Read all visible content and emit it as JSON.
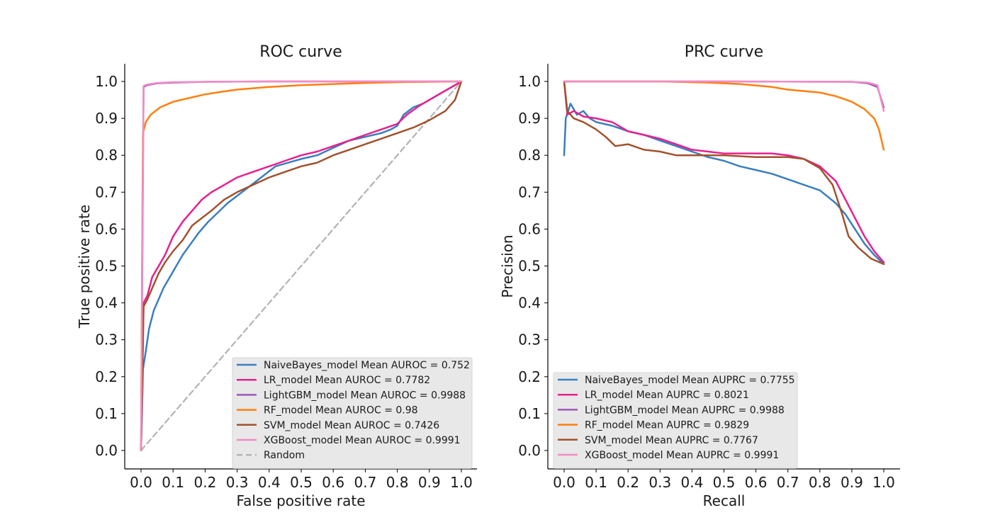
{
  "chart_data": [
    {
      "type": "line",
      "title": "ROC curve",
      "xlabel": "False positive rate",
      "ylabel": "True positive rate",
      "xlim": [
        0,
        1
      ],
      "ylim": [
        0,
        1
      ],
      "xticks": [
        "0.0",
        "0.1",
        "0.2",
        "0.3",
        "0.4",
        "0.5",
        "0.6",
        "0.7",
        "0.8",
        "0.9",
        "1.0"
      ],
      "yticks": [
        "0.0",
        "0.1",
        "0.2",
        "0.3",
        "0.4",
        "0.5",
        "0.6",
        "0.7",
        "0.8",
        "0.9",
        "1.0"
      ],
      "grid": false,
      "legend_position": "lower-right",
      "series": [
        {
          "name": "NaiveBayes_model Mean AUROC = 0.752",
          "color": "#3a7ebd",
          "points": [
            [
              0,
              0
            ],
            [
              0.003,
              0.1
            ],
            [
              0.006,
              0.22
            ],
            [
              0.015,
              0.27
            ],
            [
              0.025,
              0.33
            ],
            [
              0.04,
              0.38
            ],
            [
              0.055,
              0.41
            ],
            [
              0.07,
              0.44
            ],
            [
              0.09,
              0.47
            ],
            [
              0.11,
              0.5
            ],
            [
              0.13,
              0.53
            ],
            [
              0.155,
              0.56
            ],
            [
              0.18,
              0.59
            ],
            [
              0.21,
              0.62
            ],
            [
              0.24,
              0.645
            ],
            [
              0.27,
              0.67
            ],
            [
              0.3,
              0.69
            ],
            [
              0.33,
              0.71
            ],
            [
              0.36,
              0.73
            ],
            [
              0.39,
              0.75
            ],
            [
              0.42,
              0.77
            ],
            [
              0.46,
              0.78
            ],
            [
              0.5,
              0.79
            ],
            [
              0.55,
              0.8
            ],
            [
              0.6,
              0.82
            ],
            [
              0.65,
              0.84
            ],
            [
              0.7,
              0.85
            ],
            [
              0.75,
              0.86
            ],
            [
              0.78,
              0.87
            ],
            [
              0.8,
              0.88
            ],
            [
              0.82,
              0.91
            ],
            [
              0.85,
              0.93
            ],
            [
              0.88,
              0.94
            ],
            [
              0.91,
              0.955
            ],
            [
              0.94,
              0.97
            ],
            [
              0.97,
              0.985
            ],
            [
              1,
              1
            ]
          ]
        },
        {
          "name": "LR_model Mean AUROC = 0.7782",
          "color": "#e8208f",
          "points": [
            [
              0,
              0
            ],
            [
              0.004,
              0.2
            ],
            [
              0.008,
              0.4
            ],
            [
              0.02,
              0.42
            ],
            [
              0.035,
              0.47
            ],
            [
              0.055,
              0.5
            ],
            [
              0.075,
              0.53
            ],
            [
              0.1,
              0.58
            ],
            [
              0.13,
              0.62
            ],
            [
              0.16,
              0.65
            ],
            [
              0.19,
              0.68
            ],
            [
              0.22,
              0.7
            ],
            [
              0.26,
              0.72
            ],
            [
              0.3,
              0.74
            ],
            [
              0.35,
              0.755
            ],
            [
              0.4,
              0.77
            ],
            [
              0.45,
              0.785
            ],
            [
              0.5,
              0.8
            ],
            [
              0.55,
              0.81
            ],
            [
              0.6,
              0.825
            ],
            [
              0.65,
              0.84
            ],
            [
              0.7,
              0.855
            ],
            [
              0.75,
              0.87
            ],
            [
              0.8,
              0.885
            ],
            [
              0.83,
              0.91
            ],
            [
              0.87,
              0.935
            ],
            [
              0.9,
              0.95
            ],
            [
              0.94,
              0.97
            ],
            [
              0.97,
              0.985
            ],
            [
              1,
              1
            ]
          ]
        },
        {
          "name": "LightGBM_model Mean AUROC = 0.9988",
          "color": "#9b59b6",
          "points": [
            [
              0,
              0
            ],
            [
              0.004,
              0.5
            ],
            [
              0.008,
              0.985
            ],
            [
              0.02,
              0.99
            ],
            [
              0.05,
              0.995
            ],
            [
              0.1,
              0.997
            ],
            [
              0.2,
              0.999
            ],
            [
              0.4,
              1
            ],
            [
              1,
              1
            ]
          ]
        },
        {
          "name": "RF_model Mean AUROC = 0.98",
          "color": "#ff7f0e",
          "points": [
            [
              0,
              0
            ],
            [
              0.003,
              0.5
            ],
            [
              0.006,
              0.86
            ],
            [
              0.015,
              0.89
            ],
            [
              0.03,
              0.91
            ],
            [
              0.06,
              0.93
            ],
            [
              0.1,
              0.945
            ],
            [
              0.15,
              0.955
            ],
            [
              0.2,
              0.965
            ],
            [
              0.25,
              0.972
            ],
            [
              0.3,
              0.978
            ],
            [
              0.4,
              0.985
            ],
            [
              0.5,
              0.99
            ],
            [
              0.6,
              0.993
            ],
            [
              0.7,
              0.996
            ],
            [
              0.8,
              0.998
            ],
            [
              0.9,
              0.999
            ],
            [
              1,
              1
            ]
          ]
        },
        {
          "name": "SVM_model Mean AUROC = 0.7426",
          "color": "#a0522d",
          "points": [
            [
              0,
              0
            ],
            [
              0.004,
              0.2
            ],
            [
              0.008,
              0.39
            ],
            [
              0.02,
              0.41
            ],
            [
              0.035,
              0.44
            ],
            [
              0.055,
              0.48
            ],
            [
              0.075,
              0.51
            ],
            [
              0.1,
              0.54
            ],
            [
              0.13,
              0.57
            ],
            [
              0.16,
              0.61
            ],
            [
              0.19,
              0.63
            ],
            [
              0.22,
              0.65
            ],
            [
              0.26,
              0.68
            ],
            [
              0.3,
              0.7
            ],
            [
              0.35,
              0.72
            ],
            [
              0.4,
              0.74
            ],
            [
              0.45,
              0.755
            ],
            [
              0.5,
              0.77
            ],
            [
              0.55,
              0.78
            ],
            [
              0.6,
              0.8
            ],
            [
              0.65,
              0.815
            ],
            [
              0.7,
              0.83
            ],
            [
              0.75,
              0.845
            ],
            [
              0.8,
              0.86
            ],
            [
              0.85,
              0.875
            ],
            [
              0.9,
              0.895
            ],
            [
              0.95,
              0.92
            ],
            [
              0.98,
              0.95
            ],
            [
              1,
              1
            ]
          ]
        },
        {
          "name": "XGBoost_model Mean AUROC = 0.9991",
          "color": "#f28cc6",
          "points": [
            [
              0,
              0
            ],
            [
              0.004,
              0.55
            ],
            [
              0.008,
              0.988
            ],
            [
              0.02,
              0.992
            ],
            [
              0.05,
              0.996
            ],
            [
              0.1,
              0.998
            ],
            [
              0.2,
              0.999
            ],
            [
              0.4,
              1
            ],
            [
              1,
              1
            ]
          ]
        },
        {
          "name": "Random",
          "color": "#b3b3b3",
          "dashed": true,
          "points": [
            [
              0,
              0
            ],
            [
              1,
              1
            ]
          ]
        }
      ]
    },
    {
      "type": "line",
      "title": "PRC curve",
      "xlabel": "Recall",
      "ylabel": "Precision",
      "xlim": [
        0,
        1
      ],
      "ylim": [
        0,
        1
      ],
      "xticks": [
        "0.0",
        "0.1",
        "0.2",
        "0.3",
        "0.4",
        "0.5",
        "0.6",
        "0.7",
        "0.8",
        "0.9",
        "1.0"
      ],
      "yticks": [
        "0.0",
        "0.1",
        "0.2",
        "0.3",
        "0.4",
        "0.5",
        "0.6",
        "0.7",
        "0.8",
        "0.9",
        "1.0"
      ],
      "grid": false,
      "legend_position": "lower-left",
      "series": [
        {
          "name": "NaiveBayes_model Mean AUPRC = 0.7755",
          "color": "#3a7ebd",
          "points": [
            [
              0,
              0.8
            ],
            [
              0.005,
              0.9
            ],
            [
              0.02,
              0.94
            ],
            [
              0.04,
              0.91
            ],
            [
              0.06,
              0.92
            ],
            [
              0.08,
              0.9
            ],
            [
              0.1,
              0.89
            ],
            [
              0.15,
              0.88
            ],
            [
              0.2,
              0.865
            ],
            [
              0.25,
              0.855
            ],
            [
              0.3,
              0.84
            ],
            [
              0.35,
              0.825
            ],
            [
              0.4,
              0.81
            ],
            [
              0.45,
              0.795
            ],
            [
              0.5,
              0.785
            ],
            [
              0.55,
              0.77
            ],
            [
              0.6,
              0.76
            ],
            [
              0.65,
              0.75
            ],
            [
              0.7,
              0.735
            ],
            [
              0.75,
              0.72
            ],
            [
              0.8,
              0.705
            ],
            [
              0.85,
              0.67
            ],
            [
              0.88,
              0.64
            ],
            [
              0.91,
              0.6
            ],
            [
              0.94,
              0.56
            ],
            [
              0.97,
              0.53
            ],
            [
              1,
              0.505
            ]
          ]
        },
        {
          "name": "LR_model Mean AUPRC = 0.8021",
          "color": "#e8208f",
          "points": [
            [
              0,
              1
            ],
            [
              0.01,
              0.91
            ],
            [
              0.03,
              0.92
            ],
            [
              0.06,
              0.905
            ],
            [
              0.1,
              0.9
            ],
            [
              0.15,
              0.89
            ],
            [
              0.2,
              0.865
            ],
            [
              0.25,
              0.855
            ],
            [
              0.3,
              0.845
            ],
            [
              0.35,
              0.83
            ],
            [
              0.4,
              0.815
            ],
            [
              0.45,
              0.81
            ],
            [
              0.5,
              0.805
            ],
            [
              0.55,
              0.805
            ],
            [
              0.6,
              0.805
            ],
            [
              0.65,
              0.805
            ],
            [
              0.7,
              0.8
            ],
            [
              0.75,
              0.79
            ],
            [
              0.8,
              0.77
            ],
            [
              0.85,
              0.73
            ],
            [
              0.88,
              0.68
            ],
            [
              0.91,
              0.63
            ],
            [
              0.94,
              0.58
            ],
            [
              0.97,
              0.54
            ],
            [
              1,
              0.51
            ]
          ]
        },
        {
          "name": "LightGBM_model Mean AUPRC = 0.9988",
          "color": "#9b59b6",
          "points": [
            [
              0,
              1
            ],
            [
              0.5,
              1
            ],
            [
              0.9,
              0.999
            ],
            [
              0.95,
              0.995
            ],
            [
              0.98,
              0.985
            ],
            [
              1,
              0.93
            ]
          ]
        },
        {
          "name": "RF_model Mean AUPRC = 0.9829",
          "color": "#ff7f0e",
          "points": [
            [
              0,
              1
            ],
            [
              0.3,
              1
            ],
            [
              0.45,
              0.997
            ],
            [
              0.55,
              0.993
            ],
            [
              0.65,
              0.985
            ],
            [
              0.7,
              0.978
            ],
            [
              0.8,
              0.97
            ],
            [
              0.85,
              0.96
            ],
            [
              0.9,
              0.945
            ],
            [
              0.94,
              0.925
            ],
            [
              0.97,
              0.9
            ],
            [
              0.985,
              0.87
            ],
            [
              1,
              0.815
            ]
          ]
        },
        {
          "name": "SVM_model Mean AUPRC = 0.7767",
          "color": "#a0522d",
          "points": [
            [
              0,
              1
            ],
            [
              0.01,
              0.92
            ],
            [
              0.03,
              0.9
            ],
            [
              0.06,
              0.89
            ],
            [
              0.1,
              0.87
            ],
            [
              0.13,
              0.85
            ],
            [
              0.16,
              0.825
            ],
            [
              0.2,
              0.83
            ],
            [
              0.25,
              0.815
            ],
            [
              0.3,
              0.81
            ],
            [
              0.35,
              0.8
            ],
            [
              0.4,
              0.8
            ],
            [
              0.5,
              0.8
            ],
            [
              0.6,
              0.795
            ],
            [
              0.7,
              0.795
            ],
            [
              0.75,
              0.79
            ],
            [
              0.8,
              0.765
            ],
            [
              0.84,
              0.72
            ],
            [
              0.87,
              0.64
            ],
            [
              0.89,
              0.58
            ],
            [
              0.92,
              0.55
            ],
            [
              0.96,
              0.52
            ],
            [
              1,
              0.505
            ]
          ]
        },
        {
          "name": "XGBoost_model Mean AUPRC = 0.9991",
          "color": "#f28cc6",
          "points": [
            [
              0,
              1
            ],
            [
              0.5,
              1
            ],
            [
              0.9,
              0.999
            ],
            [
              0.95,
              0.997
            ],
            [
              0.98,
              0.99
            ],
            [
              1,
              0.92
            ]
          ]
        }
      ]
    }
  ]
}
